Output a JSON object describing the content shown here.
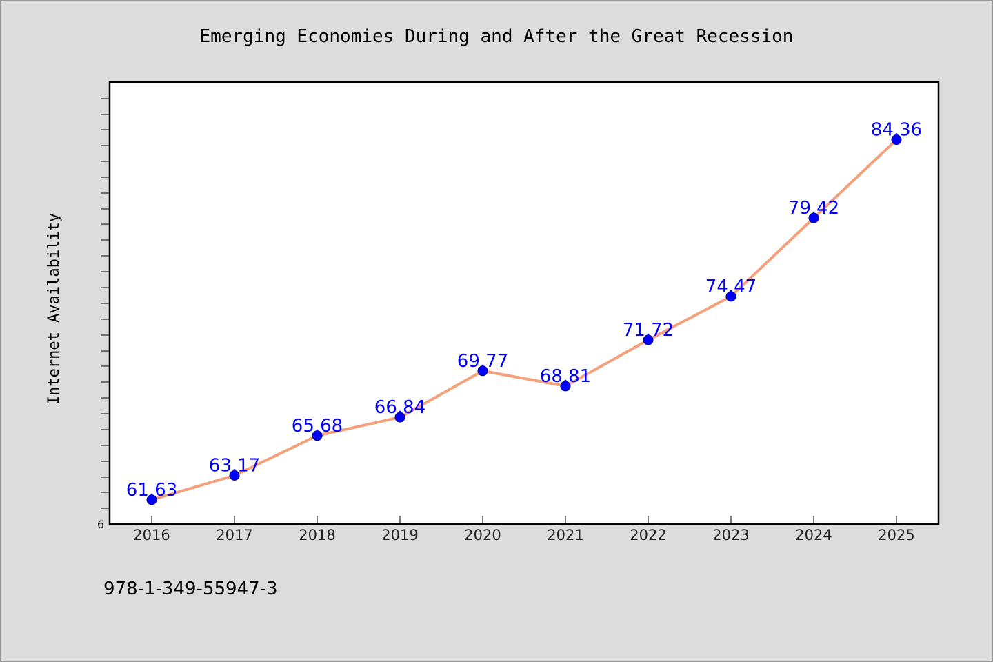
{
  "chart_data": {
    "type": "line",
    "title": "Emerging Economies During and After the Great Recession",
    "xlabel": "",
    "ylabel": "Internet Availability",
    "categories": [
      "2016",
      "2017",
      "2018",
      "2019",
      "2020",
      "2021",
      "2022",
      "2023",
      "2024",
      "2025"
    ],
    "series": [
      {
        "values": [
          61.63,
          63.17,
          65.68,
          66.84,
          69.77,
          68.81,
          71.72,
          74.47,
          79.42,
          84.36
        ],
        "color": "#f4a07a",
        "marker_color": "#0000ff"
      }
    ],
    "y_tick_label": "6",
    "ylim": [
      60.1,
      88.0
    ],
    "grid": false,
    "legend": "none"
  },
  "footer": {
    "isbn": "978-1-349-55947-3"
  }
}
